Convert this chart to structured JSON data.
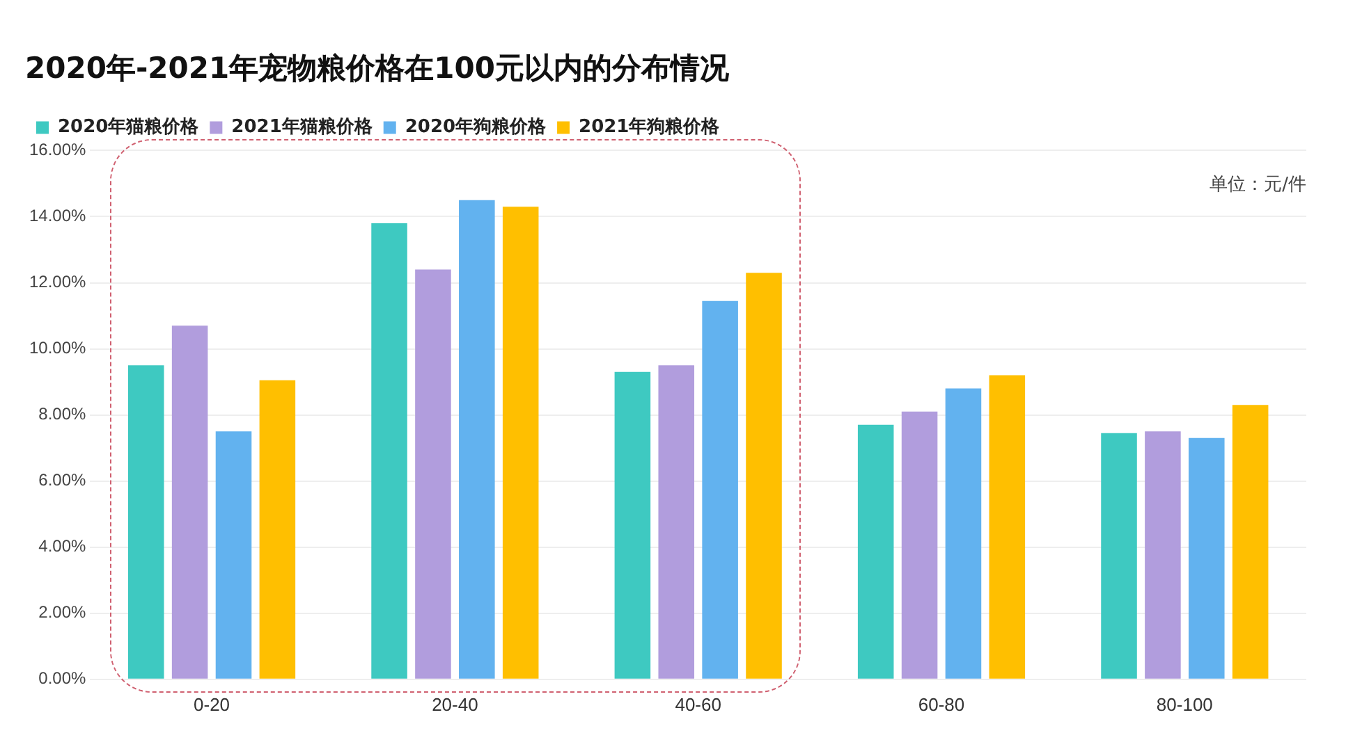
{
  "chart_data": {
    "type": "bar",
    "title": "2020年-2021年宠物粮价格在100元以内的分布情况",
    "annotations": [
      "单位：元/件"
    ],
    "categories": [
      "0-20",
      "20-40",
      "40-60",
      "60-80",
      "80-100"
    ],
    "series": [
      {
        "name": "2020年猫粮价格",
        "color": "#3ec9c1",
        "values": [
          9.5,
          13.8,
          9.3,
          7.7,
          7.45
        ]
      },
      {
        "name": "2021年猫粮价格",
        "color": "#b19ddd",
        "values": [
          10.7,
          12.4,
          9.5,
          8.1,
          7.5
        ]
      },
      {
        "name": "2020年狗粮价格",
        "color": "#62b2ef",
        "values": [
          7.5,
          14.5,
          11.45,
          8.8,
          7.3
        ]
      },
      {
        "name": "2021年狗粮价格",
        "color": "#ffbf00",
        "values": [
          9.05,
          14.3,
          12.3,
          9.2,
          8.3
        ]
      }
    ],
    "ylim": [
      0,
      16
    ],
    "yticks": [
      {
        "value": 0,
        "label": "0.00%"
      },
      {
        "value": 2,
        "label": "2.00%"
      },
      {
        "value": 4,
        "label": "4.00%"
      },
      {
        "value": 6,
        "label": "6.00%"
      },
      {
        "value": 8,
        "label": "8.00%"
      },
      {
        "value": 10,
        "label": "10.00%"
      },
      {
        "value": 12,
        "label": "12.00%"
      },
      {
        "value": 14,
        "label": "14.00%"
      },
      {
        "value": 16,
        "label": "16.00%"
      }
    ],
    "grid": "y",
    "legend": "top left"
  }
}
